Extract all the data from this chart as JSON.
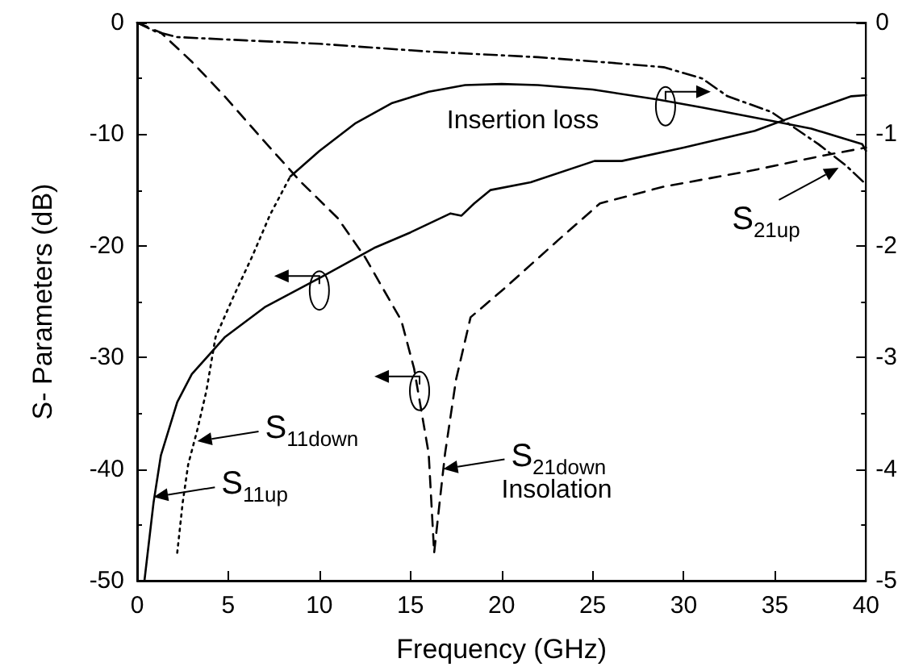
{
  "chart_data": {
    "type": "line",
    "xlabel": "Frequency (GHz)",
    "ylabel": "S- Parameters (dB)",
    "xlim": [
      0,
      40
    ],
    "xticks": [
      0,
      5,
      10,
      15,
      20,
      25,
      30,
      35,
      40
    ],
    "ylim": [
      -50,
      0
    ],
    "yticks": [
      -50,
      -40,
      -30,
      -20,
      -10,
      0
    ],
    "y2lim": [
      -5,
      0
    ],
    "y2ticks": [
      -5,
      -4,
      -3,
      -2,
      -1,
      0
    ],
    "marker": "none",
    "series": [
      {
        "color": "#000000",
        "line_style": "solid",
        "x": [
          0.4,
          0.9,
          1.3,
          2.2,
          3,
          4.8,
          7,
          10.1,
          13,
          15,
          17.2,
          17.8,
          18.5,
          19.4,
          21.6,
          25.1,
          26.6,
          30,
          33.9,
          35.9,
          39.2,
          40
        ],
        "values": [
          -50,
          -43,
          -38.8,
          -34,
          -31.5,
          -28.2,
          -25.5,
          -22.8,
          -20.2,
          -18.8,
          -17.1,
          -17.3,
          -16.2,
          -15,
          -14.3,
          -12.4,
          -12.4,
          -11.2,
          -9.7,
          -8.5,
          -6.6,
          -6.5
        ]
      },
      {
        "color": "#000000",
        "line_style": "dotted",
        "x": [
          2.2,
          2.5,
          2.8,
          3.3,
          3.8,
          4.3,
          5.3,
          6.3,
          7.3,
          8.4
        ],
        "values": [
          -47.5,
          -43,
          -39.6,
          -36.5,
          -33,
          -28.2,
          -24.5,
          -21,
          -17.2,
          -13.8
        ]
      },
      {
        "color": "#000000",
        "line_style": "solid",
        "axis": "y2",
        "x": [
          8.4,
          10,
          12,
          14,
          16,
          18,
          20,
          22,
          25,
          28.6,
          31,
          34.8,
          37,
          39,
          39.8,
          40
        ],
        "values": [
          -1.38,
          -1.15,
          -0.9,
          -0.72,
          -0.62,
          -0.56,
          -0.55,
          -0.56,
          -0.6,
          -0.69,
          -0.76,
          -0.88,
          -0.95,
          -1.05,
          -1.09,
          -1.15
        ]
      },
      {
        "color": "#000000",
        "line_style": "dashed",
        "x": [
          0,
          1.3,
          3,
          4.8,
          6.9,
          9,
          11,
          12.5,
          14.5,
          15.2,
          16,
          16.3,
          16.6,
          16.9,
          17.5,
          18.3,
          20.1,
          23.1,
          25.4,
          28.9,
          33.6,
          37.7,
          40
        ],
        "values": [
          0,
          -0.9,
          -3.5,
          -6.6,
          -10.5,
          -14.3,
          -17.5,
          -21,
          -26.7,
          -31,
          -38.6,
          -47.5,
          -43,
          -38.6,
          -32,
          -26.4,
          -23.9,
          -19.5,
          -16.2,
          -14.7,
          -13.3,
          -11.9,
          -11.2
        ]
      },
      {
        "color": "#000000",
        "line_style": "dashdot",
        "axis": "y2",
        "x": [
          0,
          1,
          2.2,
          6,
          10,
          16,
          17.2,
          22,
          26,
          28.9,
          31,
          32.4,
          34.8,
          37.4,
          38.9,
          40
        ],
        "values": [
          0,
          -0.08,
          -0.13,
          -0.16,
          -0.19,
          -0.26,
          -0.27,
          -0.31,
          -0.36,
          -0.4,
          -0.5,
          -0.66,
          -0.8,
          -1.09,
          -1.28,
          -1.45
        ]
      }
    ],
    "annotations": [
      "Insertion loss",
      "Insolation",
      {
        "text": "S$_{11down}$",
        "x": 3.3,
        "y": -37.5
      },
      {
        "text": "S$_{11up}$",
        "x": 0.9,
        "y": -42.5
      },
      {
        "text": "S$_{21down}$",
        "x": 16.8,
        "y": -40
      },
      {
        "text": "S$_{21up}$",
        "x": 38.5,
        "y": -13
      }
    ]
  }
}
